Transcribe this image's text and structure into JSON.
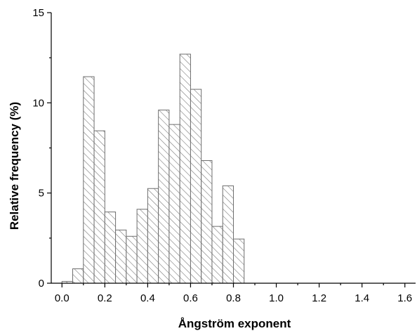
{
  "chart_data": {
    "type": "bar",
    "xlabel": "Ångström exponent",
    "ylabel": "Relative frequency (%)",
    "xlim": [
      -0.05,
      1.65
    ],
    "ylim": [
      0,
      15
    ],
    "bin_width": 0.05,
    "bin_starts": [
      0.0,
      0.05,
      0.1,
      0.15,
      0.2,
      0.25,
      0.3,
      0.35,
      0.4,
      0.45,
      0.5,
      0.55,
      0.6,
      0.65,
      0.7,
      0.75,
      0.8
    ],
    "values": [
      0.1,
      0.8,
      11.45,
      8.45,
      3.95,
      2.95,
      2.6,
      4.1,
      5.25,
      9.6,
      8.8,
      12.7,
      10.75,
      6.8,
      3.15,
      5.4,
      2.45
    ],
    "x_ticks": [
      "0.0",
      "0.2",
      "0.4",
      "0.6",
      "0.8",
      "1.0",
      "1.2",
      "1.4",
      "1.6"
    ],
    "x_tick_values": [
      0.0,
      0.2,
      0.4,
      0.6,
      0.8,
      1.0,
      1.2,
      1.4,
      1.6
    ],
    "y_ticks": [
      "0",
      "5",
      "10",
      "15"
    ],
    "y_tick_values": [
      0,
      5,
      10,
      15
    ],
    "bar_pattern": "diagonal-hatch",
    "bar_stroke_color": "#6e6e6e",
    "axis_color": "#000000",
    "grid": false,
    "legend": "none"
  }
}
